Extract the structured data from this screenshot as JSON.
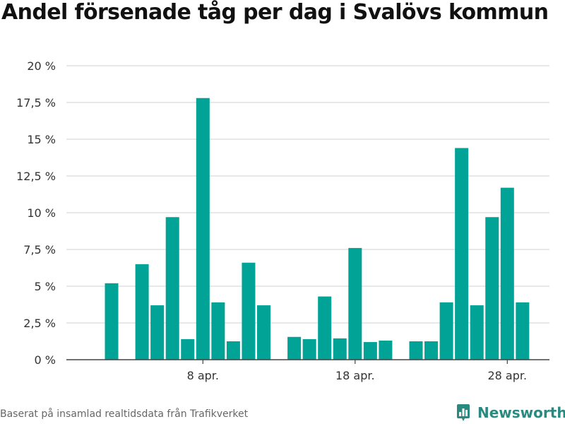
{
  "title": "Andel försenade tåg per dag i Svalövs kommun",
  "footer": "Baserat på insamlad realtidsdata från Trafikverket",
  "brand": {
    "name": "Newsworthy",
    "icon": "bar-chart-logo-icon"
  },
  "colors": {
    "bar": "#00a396",
    "grid": "#d9d9d9",
    "axis": "#444444",
    "brand": "#2a8a7f"
  },
  "chart_data": {
    "type": "bar",
    "x": [
      "2 apr.",
      "3 apr.",
      "4 apr.",
      "5 apr.",
      "6 apr.",
      "7 apr.",
      "8 apr.",
      "9 apr.",
      "10 apr.",
      "11 apr.",
      "12 apr.",
      "13 apr.",
      "14 apr.",
      "15 apr.",
      "16 apr.",
      "17 apr.",
      "18 apr.",
      "19 apr.",
      "20 apr.",
      "21 apr.",
      "22 apr.",
      "23 apr.",
      "24 apr.",
      "25 apr.",
      "26 apr.",
      "27 apr.",
      "28 apr.",
      "29 apr."
    ],
    "values": [
      5.2,
      null,
      6.5,
      3.7,
      9.7,
      1.4,
      17.8,
      3.9,
      1.25,
      6.6,
      3.7,
      null,
      1.55,
      1.4,
      4.3,
      1.45,
      7.6,
      1.2,
      1.3,
      null,
      1.25,
      1.25,
      3.9,
      14.4,
      3.7,
      9.7,
      11.7,
      3.9
    ],
    "xticks": [
      "8 apr.",
      "18 apr.",
      "28 apr."
    ],
    "yticks": [
      "0 %",
      "2,5 %",
      "5 %",
      "7,5 %",
      "10 %",
      "12,5 %",
      "15 %",
      "17,5 %",
      "20 %"
    ],
    "ylim": [
      0,
      20
    ],
    "grid": true,
    "legend": "none",
    "xlabel": "",
    "ylabel": ""
  }
}
